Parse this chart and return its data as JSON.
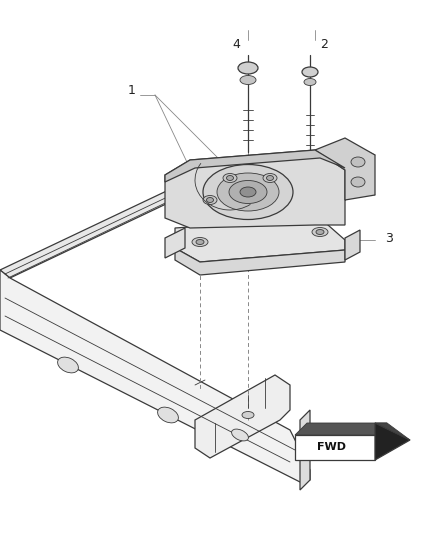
{
  "bg_color": "#ffffff",
  "lc": "#3a3a3a",
  "lc_light": "#888888",
  "fig_width": 4.38,
  "fig_height": 5.33,
  "dpi": 100,
  "label_color": "#222222",
  "label_fontsize": 9
}
